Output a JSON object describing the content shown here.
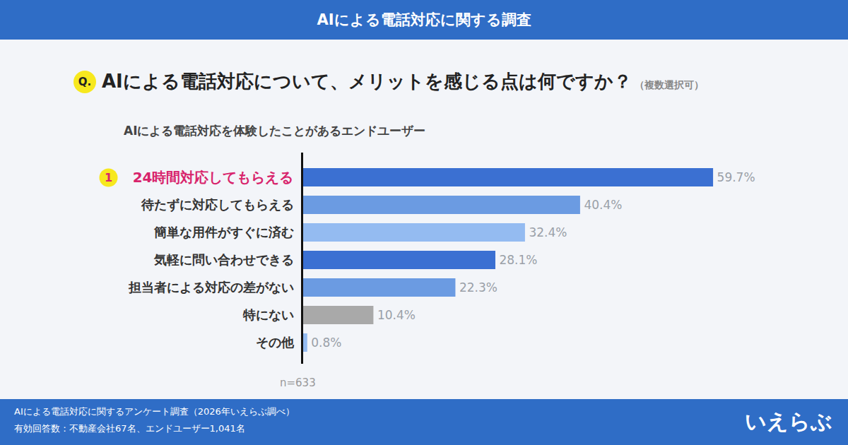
{
  "header": "AIによる電話対応に関する調査",
  "chart_data": {
    "type": "bar",
    "orientation": "horizontal",
    "title_badge": "Q.",
    "title": "AIによる電話対応について、メリットを感じる点は何ですか？",
    "title_note": "（複数選択可）",
    "subtitle": "AIによる電話対応を体験したことがあるエンドユーザー",
    "categories": [
      "24時間対応してもらえる",
      "待たずに対応してもらえる",
      "簡単な用件がすぐに済む",
      "気軽に問い合わせできる",
      "担当者による対応の差がない",
      "特にない",
      "その他"
    ],
    "values": [
      59.7,
      40.4,
      32.4,
      28.1,
      22.3,
      10.4,
      0.8
    ],
    "value_labels": [
      "59.7%",
      "40.4%",
      "32.4%",
      "28.1%",
      "22.3%",
      "10.4%",
      "0.8%"
    ],
    "colors": [
      "#3b70d2",
      "#6b9be2",
      "#94bbf1",
      "#3b70d2",
      "#6b9be2",
      "#a9a9a9",
      "#94bbf1"
    ],
    "xlim": [
      0,
      68
    ],
    "tick_labels": false,
    "data_labels": true,
    "annotations": [
      {
        "text": "1",
        "category": "24時間対応してもらえる"
      }
    ],
    "note": "n=633"
  },
  "footer": {
    "lines": [
      "AIによる電話対応に関するアンケート調査（2026年いえらぶ調べ）",
      "有効回答数：不動産会社67名、エンドユーザー1,041名"
    ],
    "logo": "いえらぶ"
  }
}
